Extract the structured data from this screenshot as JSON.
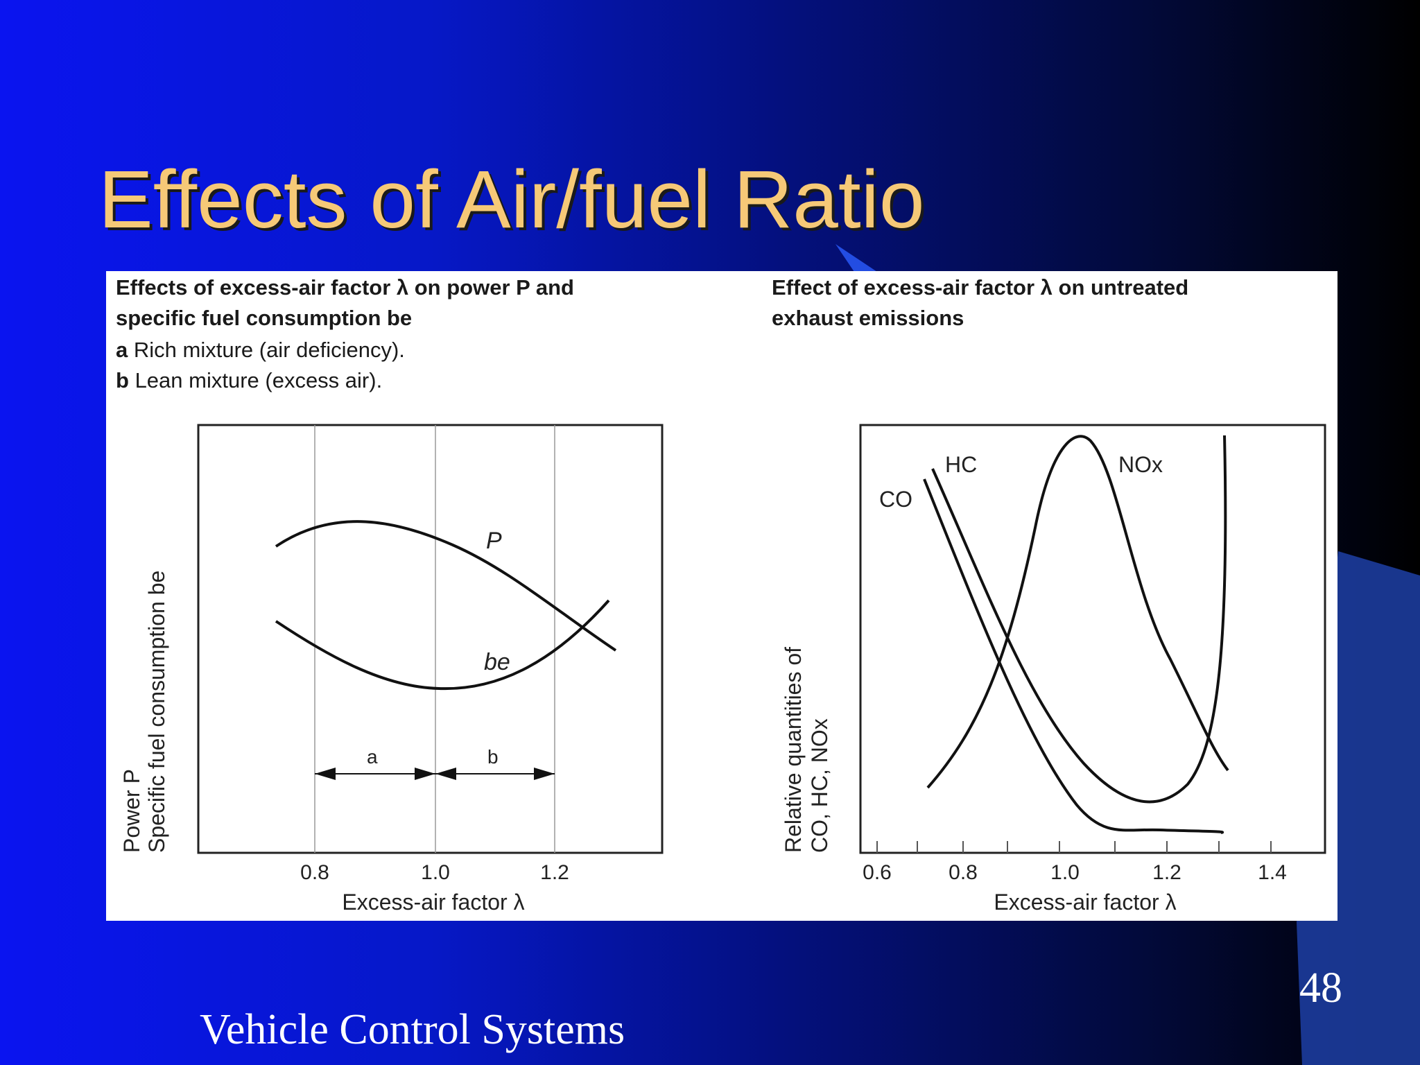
{
  "slide": {
    "title": "Effects of Air/fuel Ratio",
    "footer": "Vehicle Control Systems",
    "page_number": "48",
    "colors": {
      "title": "#f6c977",
      "background_left": "#0a14f0",
      "background_right": "#000000",
      "text": "#ffffff"
    }
  },
  "left_panel": {
    "caption_line1": "Effects of excess-air factor λ on power P and",
    "caption_line2": "specific fuel consumption be",
    "legend_a_key": "a",
    "legend_a_text": "Rich mixture (air deficiency).",
    "legend_b_key": "b",
    "legend_b_text": "Lean mixture (excess air).",
    "ylabel_line1": "Power P",
    "ylabel_line2": "Specific fuel consumption be",
    "xlabel": "Excess-air factor λ",
    "x_ticks": [
      "0.8",
      "1.0",
      "1.2"
    ],
    "curve_labels": {
      "power": "P",
      "fuel": "be"
    },
    "range_labels": {
      "a": "a",
      "b": "b"
    }
  },
  "right_panel": {
    "caption_line1": "Effect of excess-air factor λ on untreated",
    "caption_line2": "exhaust emissions",
    "ylabel_line1": "Relative quantities of",
    "ylabel_line2": "CO, HC, NOx",
    "xlabel": "Excess-air factor λ",
    "x_ticks": [
      "0.6",
      "0.8",
      "1.0",
      "1.2",
      "1.4"
    ],
    "curve_labels": {
      "co": "CO",
      "hc": "HC",
      "nox": "NOx"
    }
  }
}
